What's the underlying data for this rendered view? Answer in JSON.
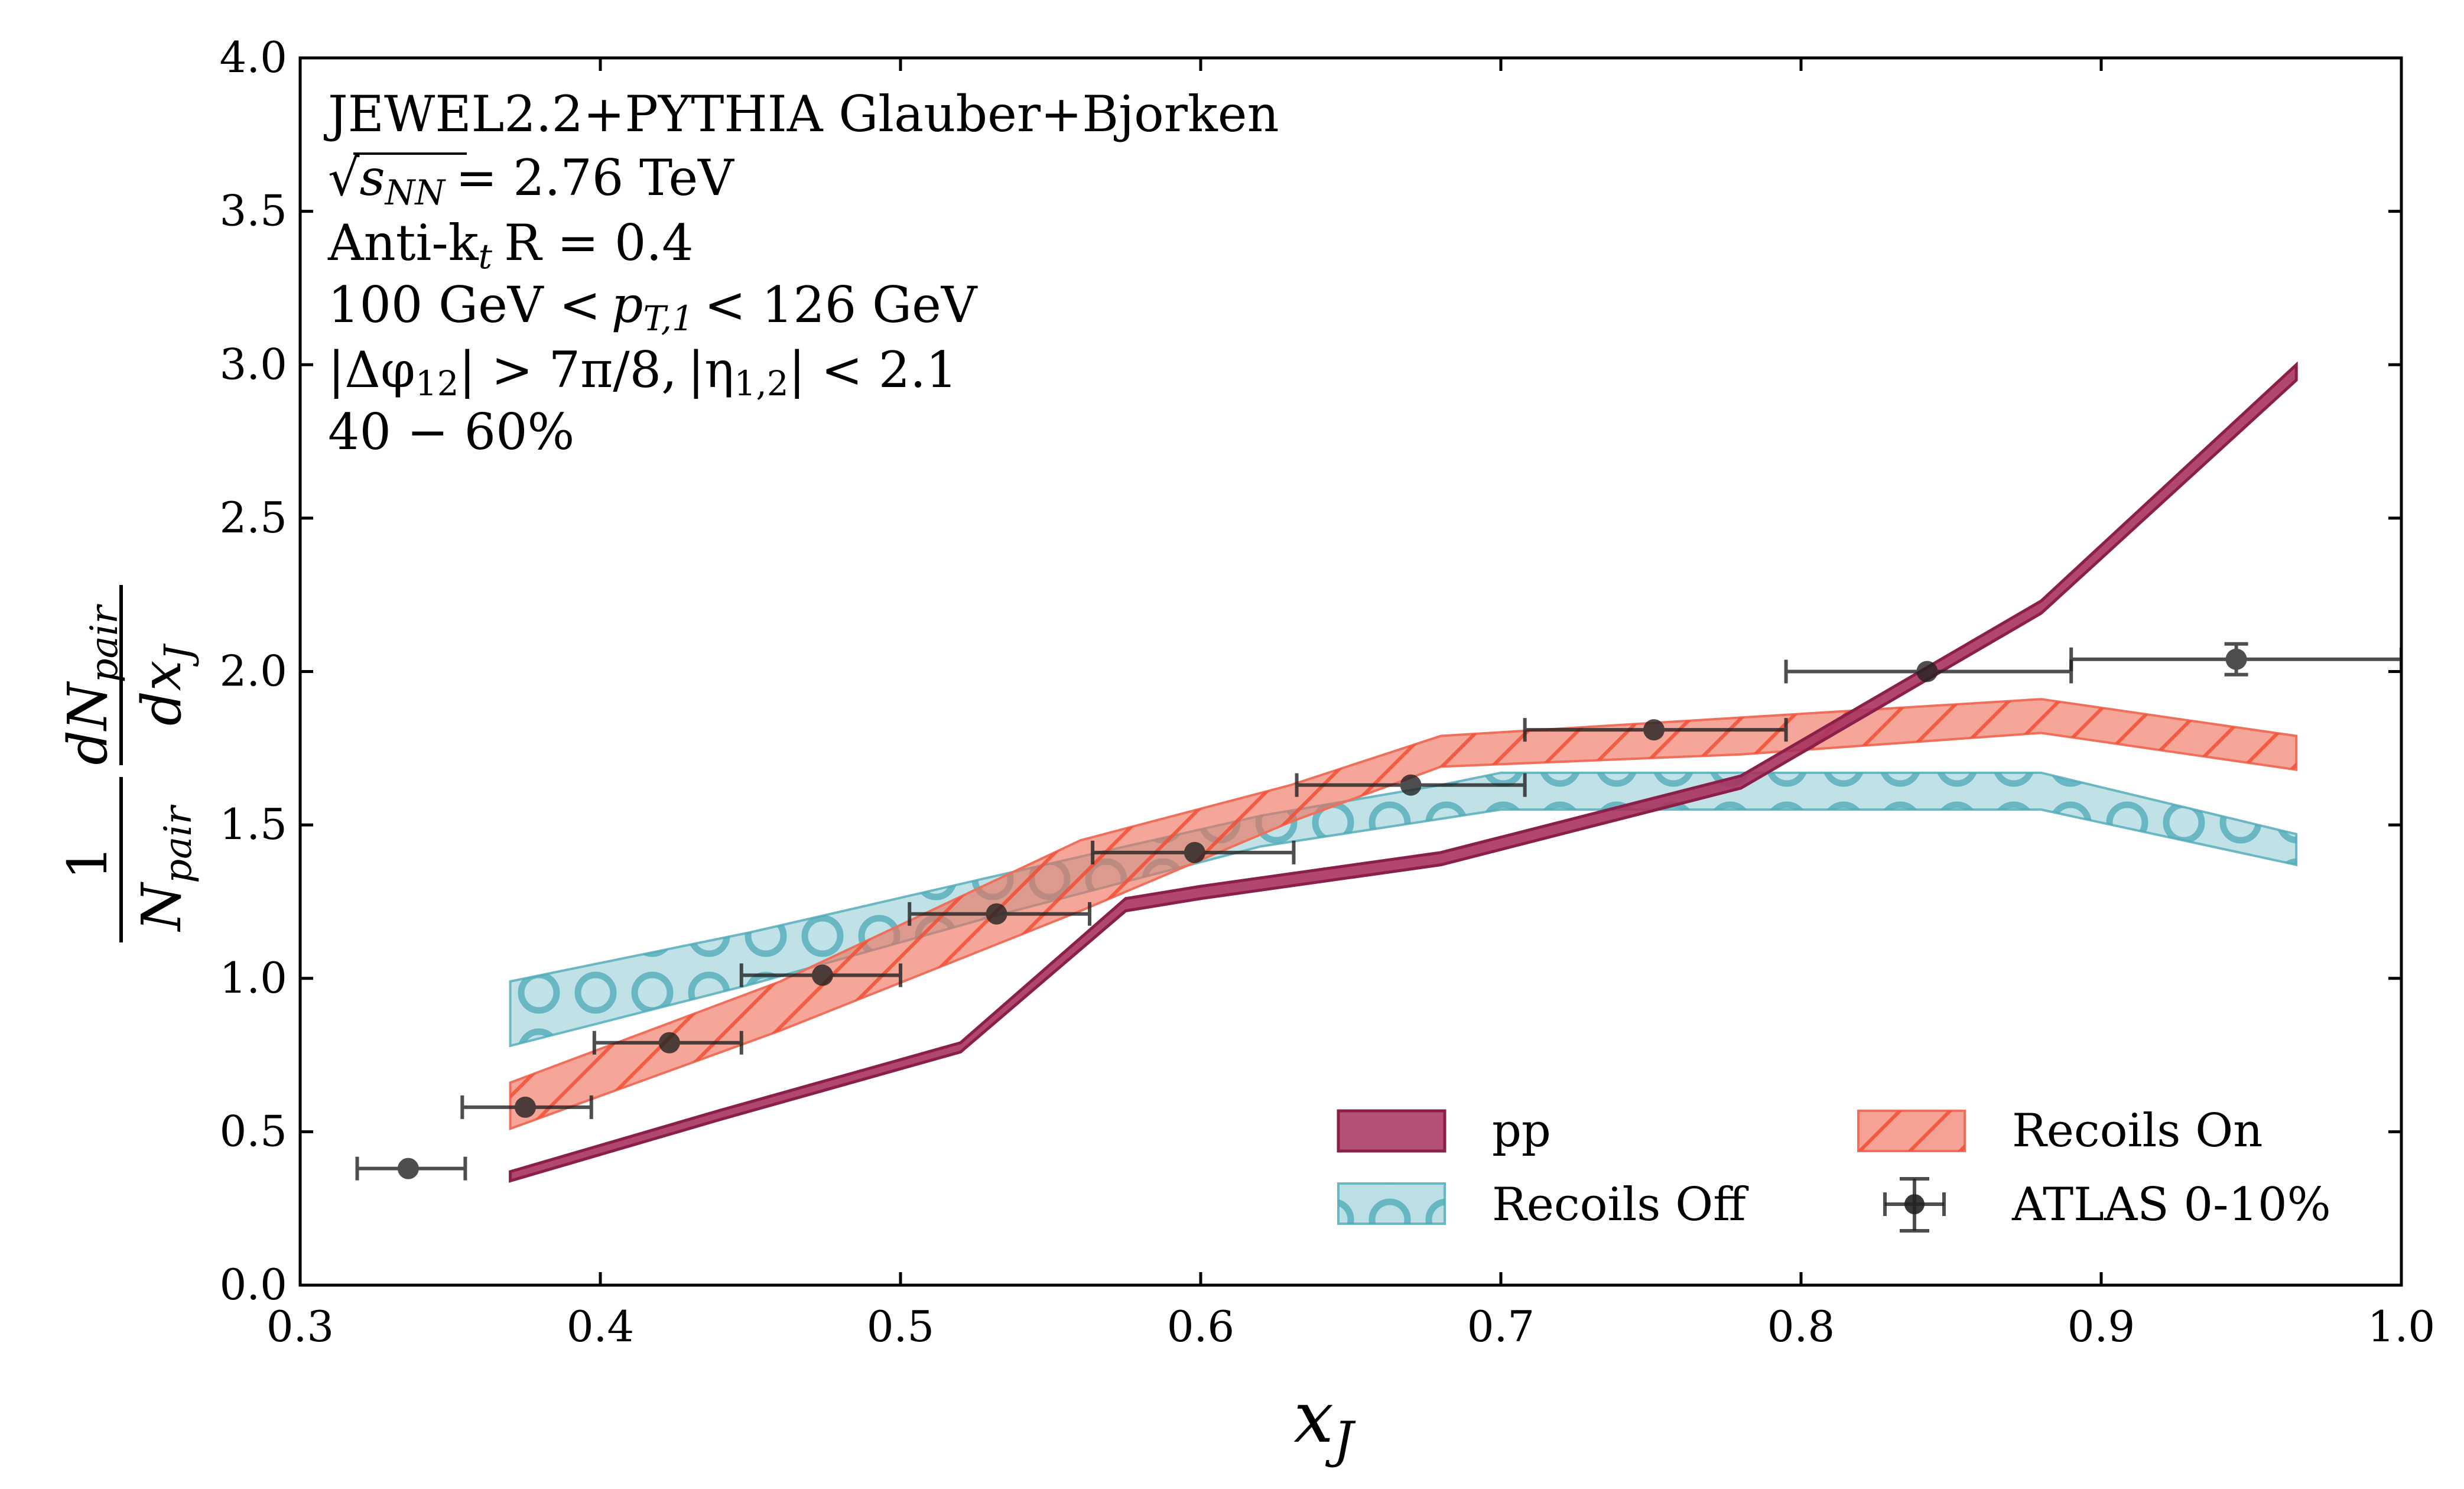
{
  "chart_data": {
    "type": "line",
    "annotation_lines": [
      "JEWEL2.2+PYTHIA Glauber+Bjorken",
      "√s",
      "NN",
      "= 2.76 TeV",
      "Anti-k",
      "t",
      "R = 0.4",
      "100 GeV <",
      "p",
      "T,1",
      "< 126 GeV",
      "|Δφ",
      "12",
      "| > 7π/8,",
      "|η",
      "1,2",
      "| < 2.1",
      "40 − 60%"
    ],
    "xlabel": "x",
    "xlabel_sub": "J",
    "ylabel_one": "1",
    "ylabel_npair": "N",
    "ylabel_pair": "pair",
    "ylabel_dN": "dN",
    "ylabel_dx": "dx",
    "ylabel_J": "J",
    "xlim": [
      0.3,
      1.0
    ],
    "ylim": [
      0.0,
      4.0
    ],
    "xticks": [
      "0.3",
      "0.4",
      "0.5",
      "0.6",
      "0.7",
      "0.8",
      "0.9",
      "1.0"
    ],
    "yticks": [
      "0.0",
      "0.5",
      "1.0",
      "1.5",
      "2.0",
      "2.5",
      "3.0",
      "3.5",
      "4.0"
    ],
    "grid": false,
    "legend_placement": "lower-right",
    "series": [
      {
        "name": "pp",
        "kind": "band",
        "color": "#a8325e",
        "x": [
          0.37,
          0.44,
          0.52,
          0.575,
          0.6,
          0.68,
          0.78,
          0.88,
          0.965
        ],
        "lower": [
          0.34,
          0.54,
          0.76,
          1.22,
          1.26,
          1.37,
          1.62,
          2.19,
          2.95
        ],
        "upper": [
          0.37,
          0.57,
          0.79,
          1.26,
          1.3,
          1.41,
          1.66,
          2.23,
          3.0
        ]
      },
      {
        "name": "Recoils Off",
        "kind": "band",
        "color": "#69b8c4",
        "x": [
          0.37,
          0.45,
          0.53,
          0.62,
          0.68,
          0.7,
          0.88,
          0.965
        ],
        "lower": [
          0.78,
          0.98,
          1.2,
          1.43,
          1.52,
          1.55,
          1.55,
          1.37
        ],
        "upper": [
          0.99,
          1.15,
          1.33,
          1.53,
          1.63,
          1.67,
          1.67,
          1.47
        ]
      },
      {
        "name": "Recoils On",
        "kind": "band",
        "color": "#ef6f5a",
        "x": [
          0.37,
          0.46,
          0.56,
          0.63,
          0.68,
          0.78,
          0.88,
          0.965
        ],
        "lower": [
          0.51,
          0.83,
          1.22,
          1.51,
          1.69,
          1.73,
          1.8,
          1.68
        ],
        "upper": [
          0.66,
          0.99,
          1.45,
          1.63,
          1.79,
          1.85,
          1.91,
          1.79
        ]
      },
      {
        "name": "ATLAS 0-10%",
        "kind": "points",
        "color": "#222222",
        "x": [
          0.336,
          0.375,
          0.423,
          0.474,
          0.532,
          0.598,
          0.67,
          0.751,
          0.842,
          0.945
        ],
        "y": [
          0.38,
          0.58,
          0.79,
          1.01,
          1.21,
          1.41,
          1.63,
          1.81,
          2.0,
          2.04
        ],
        "xerr_lo": [
          0.319,
          0.354,
          0.398,
          0.447,
          0.503,
          0.564,
          0.632,
          0.708,
          0.795,
          0.89
        ],
        "xerr_hi": [
          0.355,
          0.397,
          0.447,
          0.5,
          0.563,
          0.631,
          0.708,
          0.795,
          0.89,
          1.0
        ],
        "yerr": [
          0.0,
          0.0,
          0.0,
          0.0,
          0.0,
          0.0,
          0.0,
          0.0,
          0.0,
          0.05
        ]
      }
    ]
  }
}
